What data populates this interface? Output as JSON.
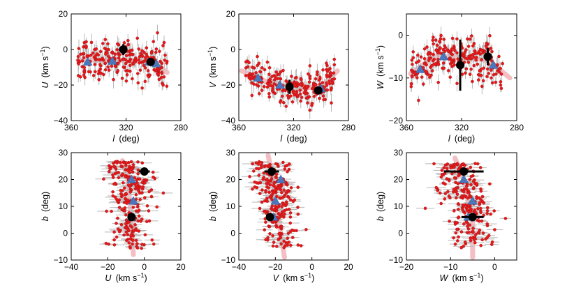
{
  "figure": {
    "n_panels": 6
  },
  "colors": {
    "dots": "#e31a1c",
    "dot_edge": "#a80f12",
    "errorbars": "#b8b8b8",
    "triangles": "#4a78bc",
    "big_points": "#000000",
    "trend": "#f2b8bd"
  },
  "chart_data": [
    {
      "type": "scatter",
      "id": "U_vs_l",
      "xvar": "l",
      "xunit": "(deg)",
      "yvar": "U",
      "yunit": "(km s",
      "xlim": [
        360,
        280
      ],
      "ylim": [
        -40,
        20
      ],
      "xticks": [
        360,
        320,
        280
      ],
      "yticks": [
        -40,
        -20,
        0,
        20
      ],
      "xtick_labels": [
        "360",
        "320",
        "280"
      ],
      "ytick_labels": [
        "−40",
        "−20",
        "0",
        "20"
      ],
      "n_scatter": 230,
      "scatter_x": [
        290,
        355
      ],
      "scatter_center": -6.5,
      "scatter_spread": 5.5,
      "trend": {
        "x": [
          355,
          340,
          320,
          300,
          290
        ],
        "y": [
          -6,
          -6,
          -6,
          -7,
          -13
        ]
      },
      "triangles": {
        "x": [
          348,
          330,
          303,
          298
        ],
        "y": [
          -7,
          -6.5,
          -7,
          -8
        ]
      },
      "big_points": [
        {
          "x": 322,
          "y": 0,
          "err": 3
        },
        {
          "x": 302,
          "y": -7,
          "err": 2
        }
      ]
    },
    {
      "type": "scatter",
      "id": "V_vs_l",
      "xvar": "l",
      "xunit": "(deg)",
      "yvar": "V",
      "yunit": "(km s",
      "xlim": [
        360,
        280
      ],
      "ylim": [
        -40,
        20
      ],
      "xticks": [
        360,
        320,
        280
      ],
      "yticks": [
        -40,
        -20,
        0,
        20
      ],
      "xtick_labels": [
        "360",
        "320",
        "280"
      ],
      "ytick_labels": [
        "−40",
        "−20",
        "0",
        "20"
      ],
      "n_scatter": 230,
      "scatter_x": [
        290,
        355
      ],
      "scatter_center": -19,
      "scatter_spread": 5,
      "trend": {
        "x": [
          358,
          340,
          320,
          300,
          288
        ],
        "y": [
          -12,
          -18,
          -22,
          -21,
          -12
        ]
      },
      "triangles": {
        "x": [
          346,
          330,
          300
        ],
        "y": [
          -16,
          -20,
          -22
        ]
      },
      "big_points": [
        {
          "x": 323,
          "y": -21,
          "err": 4
        },
        {
          "x": 302,
          "y": -23,
          "err": 2
        }
      ]
    },
    {
      "type": "scatter",
      "id": "W_vs_l",
      "xvar": "W_l",
      "xunit": "(deg)",
      "yvar": "W",
      "yunit": "(km s",
      "xlim": [
        360,
        280
      ],
      "ylim": [
        -20,
        5
      ],
      "xticks": [
        360,
        320,
        280
      ],
      "yticks": [
        -20,
        -10,
        0
      ],
      "xtick_labels": [
        "360",
        "320",
        "280"
      ],
      "ytick_labels": [
        "−20",
        "−10",
        "0"
      ],
      "n_scatter": 230,
      "scatter_x": [
        290,
        357
      ],
      "scatter_center": -6,
      "scatter_spread": 2.5,
      "trend": {
        "x": [
          357,
          340,
          320,
          300,
          285
        ],
        "y": [
          -9,
          -5,
          -5,
          -6,
          -10
        ]
      },
      "triangles": {
        "x": [
          350,
          333,
          297
        ],
        "y": [
          -8,
          -5,
          -7
        ]
      },
      "big_points": [
        {
          "x": 321,
          "y": -7,
          "err": 6
        },
        {
          "x": 301,
          "y": -5,
          "err": 2
        }
      ]
    },
    {
      "type": "scatter",
      "id": "b_vs_U",
      "xvar": "U",
      "xunit": "(km s",
      "yvar": "b",
      "yunit": "(deg)",
      "xlim": [
        -40,
        20
      ],
      "ylim": [
        -10,
        30
      ],
      "xticks": [
        -40,
        -20,
        0,
        20
      ],
      "yticks": [
        -10,
        0,
        10,
        20,
        30
      ],
      "xtick_labels": [
        "−40",
        "−20",
        "0",
        "20"
      ],
      "ytick_labels": [
        "−10",
        "0",
        "10",
        "20",
        "30"
      ],
      "n_scatter": 230,
      "scatter_y": [
        -6,
        27
      ],
      "scatter_center": -6,
      "scatter_spread": 5.5,
      "trend": {
        "x": [
          -12,
          -9,
          -8,
          -7,
          -6
        ],
        "y": [
          27,
          20,
          12,
          5,
          -8
        ]
      },
      "triangles": {
        "x": [
          -7,
          -6,
          -7
        ],
        "y": [
          20,
          12,
          6
        ]
      },
      "big_points": [
        {
          "x": 0,
          "y": 23,
          "err": 3
        },
        {
          "x": -7,
          "y": 6,
          "err": 2
        }
      ]
    },
    {
      "type": "scatter",
      "id": "b_vs_V",
      "xvar": "V",
      "xunit": "(km s",
      "yvar": "b_V",
      "yunit": "(deg)",
      "xlim": [
        -40,
        20
      ],
      "ylim": [
        -10,
        30
      ],
      "xticks": [
        -40,
        -20,
        0,
        20
      ],
      "yticks": [
        -10,
        0,
        10,
        20,
        30
      ],
      "xtick_labels": [
        "−40",
        "−20",
        "0",
        "20"
      ],
      "ytick_labels": [
        "−10",
        "0",
        "10",
        "20",
        "30"
      ],
      "n_scatter": 230,
      "scatter_y": [
        -6,
        27
      ],
      "scatter_center": -20,
      "scatter_spread": 5,
      "trend": {
        "x": [
          -24,
          -21,
          -20,
          -18,
          -15
        ],
        "y": [
          29,
          20,
          12,
          4,
          -9
        ]
      },
      "triangles": {
        "x": [
          -17,
          -20,
          -21
        ],
        "y": [
          20,
          12,
          6
        ]
      },
      "big_points": [
        {
          "x": -22,
          "y": 23,
          "err": 4
        },
        {
          "x": -23,
          "y": 6,
          "err": 2
        }
      ]
    },
    {
      "type": "scatter",
      "id": "b_vs_W",
      "xvar": "W",
      "xunit": "(km s",
      "yvar": "b_W",
      "yunit": "(deg)",
      "xlim": [
        -20,
        5
      ],
      "ylim": [
        -10,
        30
      ],
      "xticks": [
        -20,
        -10,
        0
      ],
      "yticks": [
        -10,
        0,
        10,
        20,
        30
      ],
      "xtick_labels": [
        "−20",
        "−10",
        "0"
      ],
      "ytick_labels": [
        "−10",
        "0",
        "10",
        "20",
        "30"
      ],
      "n_scatter": 230,
      "scatter_y": [
        -6,
        26
      ],
      "scatter_center": -6,
      "scatter_spread": 2.8,
      "trend": {
        "x": [
          -9,
          -7,
          -6,
          -5,
          -5
        ],
        "y": [
          28,
          20,
          12,
          5,
          -9
        ]
      },
      "triangles": {
        "x": [
          -7,
          -5,
          -6
        ],
        "y": [
          20,
          12,
          6
        ]
      },
      "big_points": [
        {
          "x": -7,
          "y": 23,
          "err": 4.5
        },
        {
          "x": -5,
          "y": 6,
          "err": 2.5
        }
      ]
    }
  ],
  "labels": {
    "U": "U",
    "V": "V",
    "W": "W",
    "l": "l",
    "W_l": "l",
    "b": "b",
    "b_V": "b",
    "b_W": "b",
    "kms_prefix": "(km s",
    "kms_exp": "−1",
    "kms_suffix": ")",
    "deg": "(deg)"
  }
}
